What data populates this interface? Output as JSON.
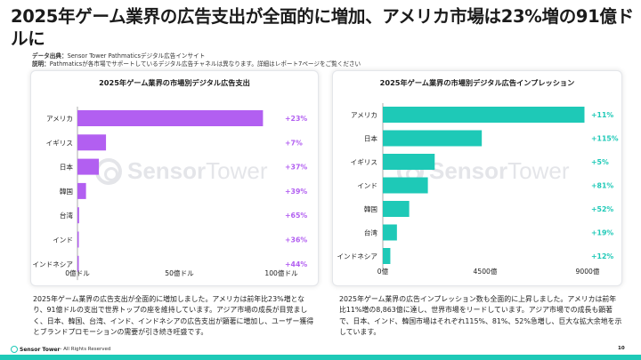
{
  "header": {
    "title": "2025年ゲーム業界の広告支出が全面的に増加、アメリカ市場は23%増の91億ドルに",
    "source_label": "データ出典：",
    "source_text": "Sensor Tower Pathmaticsデジタル広告インサイト",
    "note_label": "説明：",
    "note_text": "Pathmaticsが各市場でサポートしているデジタル広告チャネルは異なります。詳細はレポート7ページをご覧ください"
  },
  "watermark": {
    "brand_bold": "Sensor",
    "brand_rest": "Tower"
  },
  "chart_data": [
    {
      "type": "bar",
      "orientation": "horizontal",
      "title": "2025年ゲーム業界の市場別デジタル広告支出",
      "categories": [
        "アメリカ",
        "イギリス",
        "日本",
        "韓国",
        "台湾",
        "インド",
        "インドネシア"
      ],
      "values": [
        91,
        14,
        10.5,
        4.2,
        0.8,
        0.5,
        0.3
      ],
      "growth_labels": [
        "+23%",
        "+7%",
        "+37%",
        "+39%",
        "+65%",
        "+36%",
        "+44%"
      ],
      "xlim": [
        0,
        100
      ],
      "x_ticks": [
        "0億ドル",
        "50億ドル",
        "100億ドル"
      ],
      "color": "#b25ff1"
    },
    {
      "type": "bar",
      "orientation": "horizontal",
      "title": "2025年ゲーム業界の市場別デジタル広告インプレッション",
      "categories": [
        "アメリカ",
        "日本",
        "イギリス",
        "インド",
        "韓国",
        "台湾",
        "インドネシア"
      ],
      "values": [
        8863,
        4350,
        2280,
        1980,
        1160,
        620,
        330
      ],
      "growth_labels": [
        "+11%",
        "+115%",
        "+5%",
        "+81%",
        "+52%",
        "+19%",
        "+12%"
      ],
      "xlim": [
        0,
        9000
      ],
      "x_ticks": [
        "0億",
        "4500億",
        "9000億"
      ],
      "color": "#1ec9b7"
    }
  ],
  "descriptions": {
    "left": "2025年ゲーム業界の広告支出が全面的に増加しました。アメリカは前年比23%増となり、91億ドルの支出で世界トップの座を維持しています。アジア市場の成長が目覚ましく、日本、韓国、台湾、インド、インドネシアの広告支出が顕著に増加し、ユーザー獲得とブランドプロモーションの需要が引き続き旺盛です。",
    "right": "2025年ゲーム業界の広告インプレッション数も全面的に上昇しました。アメリカは前年比11%増の8,863億に達し、世界市場をリードしています。アジア市場での成長も顕著で、日本、インド、韓国市場はそれぞれ115%、81%、52%急増し、巨大な拡大余地を示しています。"
  },
  "footer": {
    "brand": "Sensor Tower",
    "rights": " - All Rights Reserved",
    "page": "10",
    "accent_color": "#1ec9b7"
  }
}
